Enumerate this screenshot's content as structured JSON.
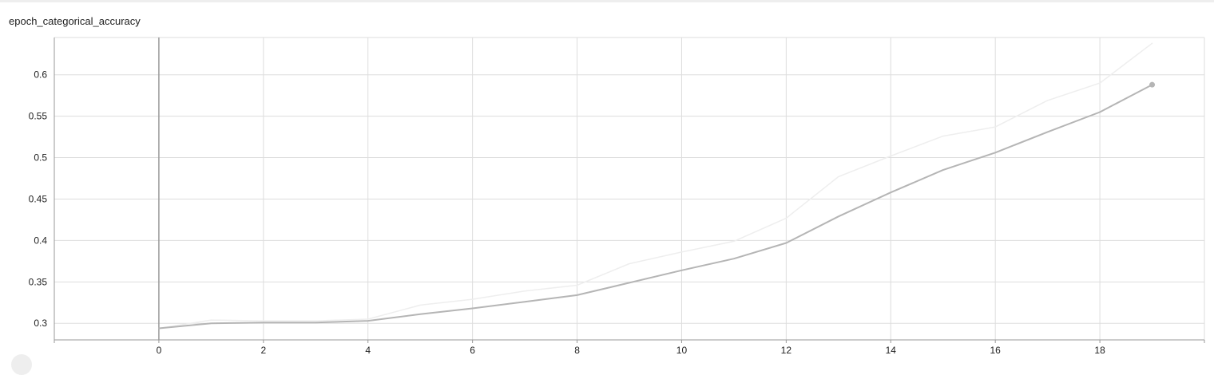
{
  "chart_data": {
    "type": "line",
    "title": "epoch_categorical_accuracy",
    "xlabel": "",
    "ylabel": "",
    "xlim": [
      -2,
      20
    ],
    "ylim": [
      0.28,
      0.645
    ],
    "x_ticks": [
      0,
      2,
      4,
      6,
      8,
      10,
      12,
      14,
      16,
      18
    ],
    "y_ticks": [
      0.3,
      0.35,
      0.4,
      0.45,
      0.5,
      0.55,
      0.6
    ],
    "y_tick_labels": [
      "0.3",
      "0.35",
      "0.4",
      "0.45",
      "0.5",
      "0.55",
      "0.6"
    ],
    "grid": true,
    "series": [
      {
        "role": "raw",
        "color": "#eeeeee",
        "x": [
          0,
          1,
          2,
          3,
          4,
          5,
          6,
          7,
          8,
          9,
          10,
          11,
          12,
          13,
          14,
          15,
          16,
          17,
          18,
          19
        ],
        "values": [
          0.294,
          0.304,
          0.303,
          0.303,
          0.305,
          0.322,
          0.329,
          0.339,
          0.346,
          0.372,
          0.386,
          0.399,
          0.427,
          0.477,
          0.502,
          0.526,
          0.537,
          0.569,
          0.59,
          0.638
        ]
      },
      {
        "role": "smoothed",
        "color": "#b5b5b5",
        "x": [
          0,
          1,
          2,
          3,
          4,
          5,
          6,
          7,
          8,
          9,
          10,
          11,
          12,
          13,
          14,
          15,
          16,
          17,
          18,
          19
        ],
        "values": [
          0.294,
          0.3,
          0.301,
          0.301,
          0.303,
          0.311,
          0.318,
          0.326,
          0.334,
          0.349,
          0.364,
          0.378,
          0.397,
          0.429,
          0.458,
          0.485,
          0.506,
          0.531,
          0.555,
          0.588
        ]
      }
    ]
  },
  "colors": {
    "grid": "#dddddd",
    "axis": "#999999",
    "zero_line": "#999999",
    "end_marker": "#b5b5b5"
  }
}
